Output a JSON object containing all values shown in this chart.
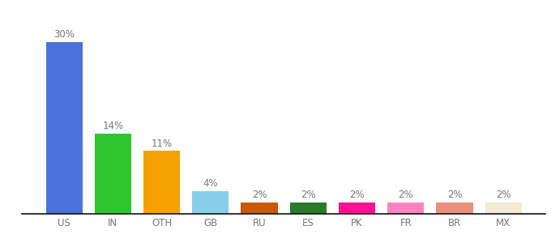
{
  "categories": [
    "US",
    "IN",
    "OTH",
    "GB",
    "RU",
    "ES",
    "PK",
    "FR",
    "BR",
    "MX"
  ],
  "values": [
    30,
    14,
    11,
    4,
    2,
    2,
    2,
    2,
    2,
    2
  ],
  "bar_colors": [
    "#4a72d9",
    "#2ec52e",
    "#f5a200",
    "#87ceeb",
    "#c85a00",
    "#2a7a2a",
    "#ff1493",
    "#ff85c0",
    "#e8907a",
    "#f0ead6"
  ],
  "labels": [
    "30%",
    "14%",
    "11%",
    "4%",
    "2%",
    "2%",
    "2%",
    "2%",
    "2%",
    "2%"
  ],
  "ylim": [
    0,
    34
  ],
  "background_color": "#ffffff",
  "label_fontsize": 8.5,
  "tick_fontsize": 8.5,
  "bar_width": 0.75,
  "label_color": "#777777"
}
